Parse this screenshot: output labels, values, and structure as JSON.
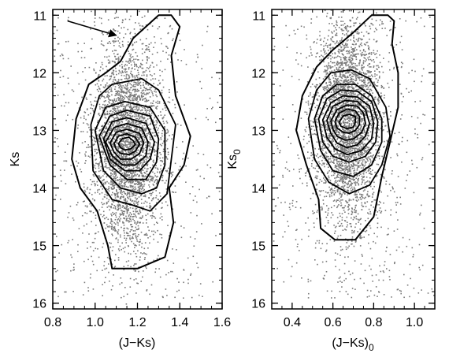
{
  "chart_data": [
    {
      "type": "scatter",
      "xlabel": "(J−Ks)",
      "ylabel": "Ks",
      "ylabel_sub": "",
      "xlabel_sub": "",
      "xlim": [
        0.8,
        1.6
      ],
      "ylim": [
        16.1,
        10.9
      ],
      "y_inverted": true,
      "xticks": [
        "0.8",
        "1.0",
        "1.2",
        "1.4",
        "1.6"
      ],
      "xtick_values": [
        0.8,
        1.0,
        1.2,
        1.4,
        1.6
      ],
      "yticks": [
        "11",
        "12",
        "13",
        "14",
        "15",
        "16"
      ],
      "ytick_values": [
        11,
        12,
        13,
        14,
        15,
        16
      ],
      "density_peak": {
        "x": 1.15,
        "y": 13.2
      },
      "annotation": {
        "type": "arrow",
        "from": {
          "x": 0.87,
          "y": 11.1
        },
        "to": {
          "x": 1.1,
          "y": 11.35
        }
      },
      "grid": false,
      "contours": [
        [
          [
            1.3,
            11.0
          ],
          [
            1.18,
            11.4
          ],
          [
            1.12,
            11.8
          ],
          [
            1.05,
            12.0
          ],
          [
            0.97,
            12.2
          ],
          [
            0.91,
            12.8
          ],
          [
            0.89,
            13.5
          ],
          [
            0.93,
            14.0
          ],
          [
            1.01,
            14.4
          ],
          [
            1.06,
            15.0
          ],
          [
            1.08,
            15.4
          ],
          [
            1.2,
            15.4
          ],
          [
            1.33,
            15.2
          ],
          [
            1.37,
            14.6
          ],
          [
            1.35,
            14.0
          ],
          [
            1.42,
            13.6
          ],
          [
            1.45,
            13.1
          ],
          [
            1.38,
            12.4
          ],
          [
            1.36,
            11.7
          ],
          [
            1.4,
            11.2
          ],
          [
            1.36,
            11.0
          ],
          [
            1.3,
            11.0
          ]
        ],
        [
          [
            0.98,
            12.9
          ],
          [
            1.02,
            12.4
          ],
          [
            1.08,
            12.2
          ],
          [
            1.22,
            12.1
          ],
          [
            1.3,
            12.3
          ],
          [
            1.38,
            12.9
          ],
          [
            1.36,
            13.5
          ],
          [
            1.34,
            14.1
          ],
          [
            1.26,
            14.4
          ],
          [
            1.18,
            14.3
          ],
          [
            1.08,
            14.2
          ],
          [
            0.99,
            13.7
          ],
          [
            0.98,
            12.9
          ]
        ],
        [
          [
            1.0,
            13.0
          ],
          [
            1.05,
            12.6
          ],
          [
            1.14,
            12.5
          ],
          [
            1.26,
            12.6
          ],
          [
            1.33,
            13.0
          ],
          [
            1.33,
            13.6
          ],
          [
            1.29,
            14.0
          ],
          [
            1.22,
            14.1
          ],
          [
            1.12,
            14.0
          ],
          [
            1.04,
            13.7
          ],
          [
            1.0,
            13.0
          ]
        ],
        [
          [
            1.02,
            13.1
          ],
          [
            1.07,
            12.75
          ],
          [
            1.15,
            12.65
          ],
          [
            1.26,
            12.75
          ],
          [
            1.3,
            13.15
          ],
          [
            1.29,
            13.55
          ],
          [
            1.24,
            13.85
          ],
          [
            1.15,
            13.85
          ],
          [
            1.07,
            13.6
          ],
          [
            1.02,
            13.1
          ]
        ],
        [
          [
            1.04,
            13.15
          ],
          [
            1.08,
            12.85
          ],
          [
            1.15,
            12.78
          ],
          [
            1.24,
            12.88
          ],
          [
            1.28,
            13.2
          ],
          [
            1.26,
            13.5
          ],
          [
            1.21,
            13.7
          ],
          [
            1.14,
            13.7
          ],
          [
            1.07,
            13.5
          ],
          [
            1.04,
            13.15
          ]
        ],
        [
          [
            1.05,
            13.2
          ],
          [
            1.09,
            12.95
          ],
          [
            1.15,
            12.88
          ],
          [
            1.22,
            12.96
          ],
          [
            1.25,
            13.2
          ],
          [
            1.24,
            13.44
          ],
          [
            1.19,
            13.6
          ],
          [
            1.13,
            13.6
          ],
          [
            1.08,
            13.44
          ],
          [
            1.05,
            13.2
          ]
        ],
        [
          [
            1.07,
            13.22
          ],
          [
            1.1,
            13.03
          ],
          [
            1.15,
            12.98
          ],
          [
            1.21,
            13.05
          ],
          [
            1.23,
            13.22
          ],
          [
            1.21,
            13.4
          ],
          [
            1.17,
            13.5
          ],
          [
            1.12,
            13.5
          ],
          [
            1.09,
            13.38
          ],
          [
            1.07,
            13.22
          ]
        ],
        [
          [
            1.09,
            13.23
          ],
          [
            1.11,
            13.1
          ],
          [
            1.15,
            13.06
          ],
          [
            1.19,
            13.12
          ],
          [
            1.21,
            13.24
          ],
          [
            1.19,
            13.36
          ],
          [
            1.16,
            13.42
          ],
          [
            1.12,
            13.4
          ],
          [
            1.1,
            13.33
          ],
          [
            1.09,
            13.23
          ]
        ],
        [
          [
            1.11,
            13.23
          ],
          [
            1.13,
            13.14
          ],
          [
            1.16,
            13.12
          ],
          [
            1.18,
            13.18
          ],
          [
            1.19,
            13.25
          ],
          [
            1.17,
            13.32
          ],
          [
            1.14,
            13.34
          ],
          [
            1.12,
            13.3
          ],
          [
            1.11,
            13.23
          ]
        ]
      ]
    },
    {
      "type": "scatter",
      "xlabel": "(J−Ks)",
      "xlabel_sub": "0",
      "ylabel": "Ks",
      "ylabel_sub": "0",
      "xlim": [
        0.3,
        1.1
      ],
      "ylim": [
        16.1,
        10.9
      ],
      "y_inverted": true,
      "xticks": [
        "0.4",
        "0.6",
        "0.8",
        "1.0"
      ],
      "xtick_values": [
        0.4,
        0.6,
        0.8,
        1.0
      ],
      "yticks": [
        "11",
        "12",
        "13",
        "14",
        "15",
        "16"
      ],
      "ytick_values": [
        11,
        12,
        13,
        14,
        15,
        16
      ],
      "density_peak": {
        "x": 0.67,
        "y": 12.85
      },
      "grid": false,
      "contours": [
        [
          [
            0.79,
            11.0
          ],
          [
            0.7,
            11.3
          ],
          [
            0.6,
            11.6
          ],
          [
            0.52,
            11.9
          ],
          [
            0.45,
            12.4
          ],
          [
            0.42,
            13.0
          ],
          [
            0.47,
            13.6
          ],
          [
            0.53,
            14.2
          ],
          [
            0.54,
            14.7
          ],
          [
            0.61,
            14.9
          ],
          [
            0.71,
            14.9
          ],
          [
            0.8,
            14.5
          ],
          [
            0.84,
            13.8
          ],
          [
            0.88,
            13.2
          ],
          [
            0.92,
            12.6
          ],
          [
            0.92,
            12.0
          ],
          [
            0.89,
            11.5
          ],
          [
            0.9,
            11.1
          ],
          [
            0.87,
            11.0
          ],
          [
            0.79,
            11.0
          ]
        ],
        [
          [
            0.48,
            12.8
          ],
          [
            0.52,
            12.3
          ],
          [
            0.59,
            12.0
          ],
          [
            0.69,
            11.95
          ],
          [
            0.78,
            12.1
          ],
          [
            0.86,
            12.6
          ],
          [
            0.88,
            13.1
          ],
          [
            0.84,
            13.6
          ],
          [
            0.78,
            13.95
          ],
          [
            0.68,
            14.1
          ],
          [
            0.58,
            13.9
          ],
          [
            0.51,
            13.5
          ],
          [
            0.48,
            12.8
          ]
        ],
        [
          [
            0.51,
            12.8
          ],
          [
            0.55,
            12.4
          ],
          [
            0.62,
            12.2
          ],
          [
            0.71,
            12.2
          ],
          [
            0.79,
            12.4
          ],
          [
            0.84,
            12.8
          ],
          [
            0.84,
            13.2
          ],
          [
            0.79,
            13.6
          ],
          [
            0.7,
            13.8
          ],
          [
            0.6,
            13.7
          ],
          [
            0.54,
            13.35
          ],
          [
            0.51,
            12.8
          ]
        ],
        [
          [
            0.53,
            12.8
          ],
          [
            0.57,
            12.45
          ],
          [
            0.64,
            12.3
          ],
          [
            0.72,
            12.32
          ],
          [
            0.79,
            12.5
          ],
          [
            0.82,
            12.85
          ],
          [
            0.81,
            13.2
          ],
          [
            0.76,
            13.45
          ],
          [
            0.68,
            13.55
          ],
          [
            0.6,
            13.45
          ],
          [
            0.55,
            13.2
          ],
          [
            0.53,
            12.8
          ]
        ],
        [
          [
            0.55,
            12.82
          ],
          [
            0.59,
            12.52
          ],
          [
            0.65,
            12.4
          ],
          [
            0.72,
            12.42
          ],
          [
            0.78,
            12.58
          ],
          [
            0.8,
            12.88
          ],
          [
            0.79,
            13.15
          ],
          [
            0.74,
            13.35
          ],
          [
            0.67,
            13.42
          ],
          [
            0.61,
            13.32
          ],
          [
            0.57,
            13.12
          ],
          [
            0.55,
            12.82
          ]
        ],
        [
          [
            0.57,
            12.83
          ],
          [
            0.6,
            12.58
          ],
          [
            0.66,
            12.48
          ],
          [
            0.72,
            12.5
          ],
          [
            0.76,
            12.64
          ],
          [
            0.78,
            12.88
          ],
          [
            0.76,
            13.1
          ],
          [
            0.72,
            13.25
          ],
          [
            0.67,
            13.3
          ],
          [
            0.62,
            13.22
          ],
          [
            0.59,
            13.05
          ],
          [
            0.57,
            12.83
          ]
        ],
        [
          [
            0.59,
            12.84
          ],
          [
            0.62,
            12.64
          ],
          [
            0.67,
            12.56
          ],
          [
            0.72,
            12.58
          ],
          [
            0.75,
            12.7
          ],
          [
            0.76,
            12.88
          ],
          [
            0.74,
            13.04
          ],
          [
            0.7,
            13.15
          ],
          [
            0.66,
            13.17
          ],
          [
            0.62,
            13.1
          ],
          [
            0.6,
            12.98
          ],
          [
            0.59,
            12.84
          ]
        ],
        [
          [
            0.61,
            12.85
          ],
          [
            0.63,
            12.7
          ],
          [
            0.67,
            12.63
          ],
          [
            0.71,
            12.66
          ],
          [
            0.73,
            12.76
          ],
          [
            0.73,
            12.9
          ],
          [
            0.71,
            13.0
          ],
          [
            0.68,
            13.05
          ],
          [
            0.65,
            13.03
          ],
          [
            0.62,
            12.96
          ],
          [
            0.61,
            12.85
          ]
        ],
        [
          [
            0.63,
            12.86
          ],
          [
            0.65,
            12.75
          ],
          [
            0.68,
            12.72
          ],
          [
            0.71,
            12.76
          ],
          [
            0.71,
            12.86
          ],
          [
            0.7,
            12.94
          ],
          [
            0.67,
            12.97
          ],
          [
            0.64,
            12.93
          ],
          [
            0.63,
            12.86
          ]
        ]
      ]
    }
  ]
}
